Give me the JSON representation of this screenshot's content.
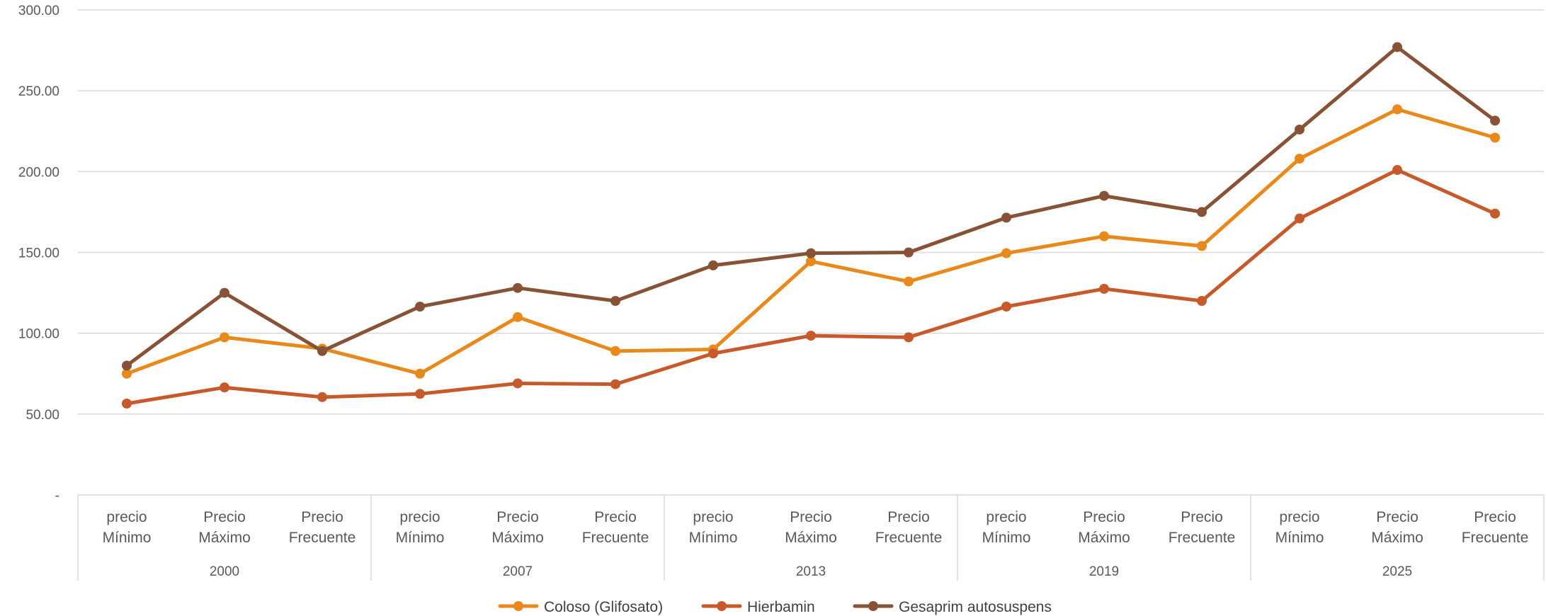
{
  "chart_data": {
    "type": "line",
    "title": "",
    "xlabel": "",
    "ylabel": "",
    "ylim": [
      0,
      300
    ],
    "yticks": [
      0,
      50,
      100,
      150,
      200,
      250,
      300
    ],
    "ytick_labels": [
      "-",
      "50.00",
      "100.00",
      "150.00",
      "200.00",
      "250.00",
      "300.00"
    ],
    "grid": true,
    "legend_position": "bottom",
    "groups": [
      {
        "label": "2000",
        "categories": [
          [
            "precio",
            "Mínimo"
          ],
          [
            "Precio",
            "Máximo"
          ],
          [
            "Precio",
            "Frecuente"
          ]
        ]
      },
      {
        "label": "2007",
        "categories": [
          [
            "precio",
            "Mínimo"
          ],
          [
            "Precio",
            "Máximo"
          ],
          [
            "Precio",
            "Frecuente"
          ]
        ]
      },
      {
        "label": "2013",
        "categories": [
          [
            "precio",
            "Mínimo"
          ],
          [
            "Precio",
            "Máximo"
          ],
          [
            "Precio",
            "Frecuente"
          ]
        ]
      },
      {
        "label": "2019",
        "categories": [
          [
            "precio",
            "Mínimo"
          ],
          [
            "Precio",
            "Máximo"
          ],
          [
            "Precio",
            "Frecuente"
          ]
        ]
      },
      {
        "label": "2025",
        "categories": [
          [
            "precio",
            "Mínimo"
          ],
          [
            "Precio",
            "Máximo"
          ],
          [
            "Precio",
            "Frecuente"
          ]
        ]
      }
    ],
    "series": [
      {
        "name": "Coloso (Glifosato)",
        "color": "#E8891C",
        "values": [
          75,
          97.5,
          90.5,
          75,
          110,
          89,
          90,
          144.5,
          132,
          149.5,
          160,
          154,
          208,
          238.5,
          221
        ]
      },
      {
        "name": "Hierbamin",
        "color": "#C65A2A",
        "values": [
          56.5,
          66.5,
          60.5,
          62.5,
          69,
          68.5,
          87.5,
          98.5,
          97.5,
          116.5,
          127.5,
          120,
          171,
          201,
          174
        ]
      },
      {
        "name": "Gesaprim autosuspens",
        "color": "#875235",
        "values": [
          80,
          125,
          89,
          116.5,
          128,
          120,
          142,
          149.5,
          150,
          171.5,
          185,
          175,
          226,
          277,
          231.5
        ]
      }
    ]
  }
}
